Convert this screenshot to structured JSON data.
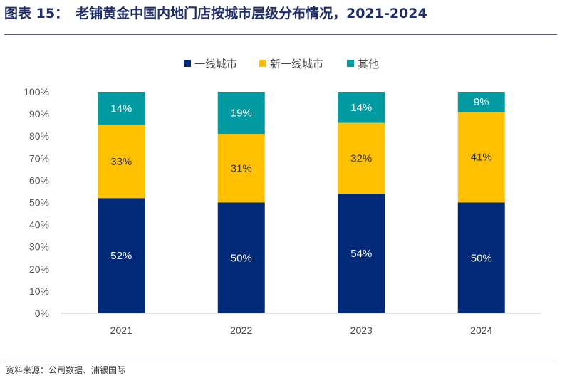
{
  "header": {
    "figure_label": "图表 15：",
    "title": "老铺黄金中国内地门店按城市层级分布情况，2021-2024"
  },
  "footer": {
    "source": "资料来源：公司数据、浦银国际"
  },
  "chart_data": {
    "type": "bar",
    "stacked": true,
    "categories": [
      "2021",
      "2022",
      "2023",
      "2024"
    ],
    "series": [
      {
        "name": "一线城市",
        "color": "#002a77",
        "label_color": "#ffffff",
        "values": [
          52,
          50,
          54,
          50
        ],
        "labels": [
          "52%",
          "50%",
          "54%",
          "50%"
        ]
      },
      {
        "name": "新一线城市",
        "color": "#ffc000",
        "label_color": "#333333",
        "values": [
          33,
          31,
          32,
          41
        ],
        "labels": [
          "33%",
          "31%",
          "32%",
          "41%"
        ]
      },
      {
        "name": "其他",
        "color": "#009aa0",
        "label_color": "#ffffff",
        "values": [
          14,
          19,
          14,
          9
        ],
        "labels": [
          "14%",
          "19%",
          "14%",
          "9%"
        ]
      }
    ],
    "yticks": [
      "0%",
      "10%",
      "20%",
      "30%",
      "40%",
      "50%",
      "60%",
      "70%",
      "80%",
      "90%",
      "100%"
    ],
    "ylim": [
      0,
      100
    ],
    "grid": false,
    "legend": "top-center"
  }
}
